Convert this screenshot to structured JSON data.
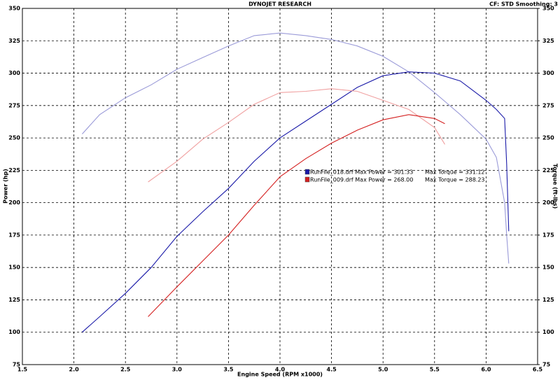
{
  "chart_data": {
    "type": "line",
    "title": "DYNOJET RESEARCH",
    "subtitle": "CF: STD  Smoothing: 3",
    "x_label": "Engine Speed (RPM x1000)",
    "y_label": "Power (hp)",
    "y2_label": "Torque (ft-lbs)",
    "xlim": [
      1.5,
      6.5
    ],
    "xticks": [
      {
        "value": 1.5,
        "label": "1.5"
      },
      {
        "value": 2,
        "label": "2.0"
      },
      {
        "value": 2.5,
        "label": "2.5"
      },
      {
        "value": 3,
        "label": "3.0"
      },
      {
        "value": 3.5,
        "label": "3.5"
      },
      {
        "value": 4,
        "label": "4.0"
      },
      {
        "value": 4.5,
        "label": "4.5"
      },
      {
        "value": 5,
        "label": "5.0"
      },
      {
        "value": 5.5,
        "label": "5.5"
      },
      {
        "value": 6,
        "label": "6.0"
      },
      {
        "value": 6.5,
        "label": "6.5"
      }
    ],
    "ylim": [
      75,
      350
    ],
    "yticks": [
      75,
      100,
      125,
      150,
      175,
      200,
      225,
      250,
      275,
      300,
      325,
      350
    ],
    "y2lim": [
      75,
      350
    ],
    "y2ticks": [
      75,
      100,
      125,
      150,
      175,
      200,
      225,
      250,
      275,
      300,
      325,
      350
    ],
    "grid": true,
    "runs": [
      {
        "label": "RunFile_018.drf Max Power = 301.33",
        "torque_label": "Max Torque = 331.12",
        "color": "#1a1aa8",
        "torque_color": "#9a9ad8",
        "x": [
          2.08,
          2.25,
          2.5,
          2.75,
          3.0,
          3.25,
          3.5,
          3.75,
          4.0,
          4.25,
          4.5,
          4.75,
          5.0,
          5.25,
          5.5,
          5.75,
          6.0,
          6.1,
          6.18,
          6.2,
          6.22
        ],
        "power": [
          100,
          112,
          130,
          150,
          174,
          193,
          211,
          232,
          250,
          263,
          276,
          289,
          298,
          301,
          300,
          294,
          279,
          272,
          265,
          230,
          178
        ],
        "torque": [
          253,
          268,
          281,
          291,
          303,
          312,
          321,
          329,
          331,
          329,
          326,
          321,
          313,
          301,
          285,
          268,
          249,
          235,
          200,
          175,
          153
        ]
      },
      {
        "label": "RunFile_009.drf Max Power = 268.00",
        "torque_label": "Max Torque = 288.23",
        "color": "#d42020",
        "torque_color": "#f0a0a0",
        "x": [
          2.72,
          3.0,
          3.25,
          3.5,
          3.75,
          4.0,
          4.25,
          4.5,
          4.75,
          5.0,
          5.25,
          5.5,
          5.6
        ],
        "power": [
          112,
          135,
          155,
          175,
          198,
          220,
          234,
          246,
          256,
          264,
          268,
          265,
          261
        ],
        "torque": [
          216,
          232,
          249,
          262,
          276,
          285,
          286,
          288,
          286,
          279,
          272,
          258,
          245
        ]
      }
    ]
  }
}
